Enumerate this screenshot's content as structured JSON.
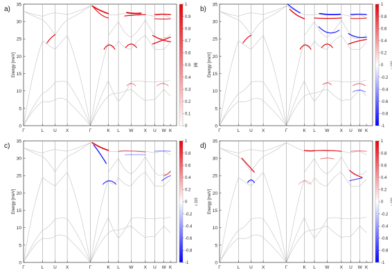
{
  "chart_data": [
    {
      "type": "line",
      "panel_label": "a)",
      "ylabel": "Energy [meV]",
      "xlim": [
        0,
        7.0
      ],
      "ylim": [
        0,
        35
      ],
      "yticks": [
        0,
        5,
        10,
        15,
        20,
        25,
        30,
        35
      ],
      "x_tick_labels": [
        "Γ",
        "L",
        "U",
        "X",
        "Γ",
        "K",
        "L",
        "W",
        "X",
        "U",
        "W",
        "K"
      ],
      "x_tick_positions": [
        0,
        0.87,
        1.44,
        2.0,
        3.06,
        3.88,
        4.34,
        4.92,
        5.57,
        6.0,
        6.42,
        6.72
      ],
      "colorbar": {
        "label": "|φ|",
        "range": [
          0,
          1
        ],
        "ticks": [
          0,
          0.1,
          0.2,
          0.3,
          0.4,
          0.5,
          0.6,
          0.7,
          0.8,
          0.9,
          1
        ],
        "scheme": "white-red"
      },
      "highlight": "a"
    },
    {
      "type": "line",
      "panel_label": "b)",
      "ylabel": "Energy [meV]",
      "xlim": [
        0,
        7.0
      ],
      "ylim": [
        0,
        35
      ],
      "yticks": [
        0,
        5,
        10,
        15,
        20,
        25,
        30,
        35
      ],
      "x_tick_labels": [
        "Γ",
        "L",
        "U",
        "X",
        "Γ",
        "K",
        "L",
        "W",
        "X",
        "U",
        "W",
        "K"
      ],
      "x_tick_positions": [
        0,
        0.87,
        1.44,
        2.0,
        3.06,
        3.88,
        4.34,
        4.92,
        5.57,
        6.0,
        6.42,
        6.72
      ],
      "colorbar": {
        "label": "⟨σ⟩ ʸ",
        "range": [
          -1,
          1
        ],
        "ticks": [
          -1,
          -0.8,
          -0.6,
          -0.4,
          -0.2,
          0,
          0.2,
          0.4,
          0.6,
          0.8,
          1
        ],
        "scheme": "blue-white-red"
      },
      "highlight": "b"
    },
    {
      "type": "line",
      "panel_label": "c)",
      "ylabel": "Energy [meV]",
      "xlim": [
        0,
        7.0
      ],
      "ylim": [
        0,
        35
      ],
      "yticks": [
        0,
        5,
        10,
        15,
        20,
        25,
        30,
        35
      ],
      "x_tick_labels": [
        "Γ",
        "L",
        "U",
        "X",
        "Γ",
        "K",
        "L",
        "W",
        "X",
        "U",
        "W",
        "K"
      ],
      "x_tick_positions": [
        0,
        0.87,
        1.44,
        2.0,
        3.06,
        3.88,
        4.34,
        4.92,
        5.57,
        6.0,
        6.42,
        6.72
      ],
      "colorbar": {
        "label": "⟨σ⟩ ʸ",
        "range": [
          -1,
          1
        ],
        "ticks": [
          -1,
          -0.8,
          -0.6,
          -0.4,
          -0.2,
          0,
          0.2,
          0.4,
          0.6,
          0.8,
          1
        ],
        "scheme": "blue-white-red"
      },
      "highlight": "c"
    },
    {
      "type": "line",
      "panel_label": "d)",
      "ylabel": "Energy [meV]",
      "xlim": [
        0,
        7.0
      ],
      "ylim": [
        0,
        35
      ],
      "yticks": [
        0,
        5,
        10,
        15,
        20,
        25,
        30,
        35
      ],
      "x_tick_labels": [
        "Γ",
        "L",
        "U",
        "X",
        "Γ",
        "K",
        "L",
        "W",
        "X",
        "U",
        "W",
        "K"
      ],
      "x_tick_positions": [
        0,
        0.87,
        1.44,
        2.0,
        3.06,
        3.88,
        4.34,
        4.92,
        5.57,
        6.0,
        6.42,
        6.72
      ],
      "colorbar": {
        "label": "⟨σ⟩ ʸ",
        "range": [
          -1,
          1
        ],
        "ticks": [
          -1,
          -0.8,
          -0.6,
          -0.4,
          -0.2,
          0,
          0.2,
          0.4,
          0.6,
          0.8,
          1
        ],
        "scheme": "blue-white-red"
      },
      "highlight": "d"
    }
  ],
  "colors": {
    "red": "#e8000b",
    "blue": "#1a1aff",
    "band": "#c8c8c8",
    "axis": "#333333",
    "kline": "#a0a0a0"
  }
}
